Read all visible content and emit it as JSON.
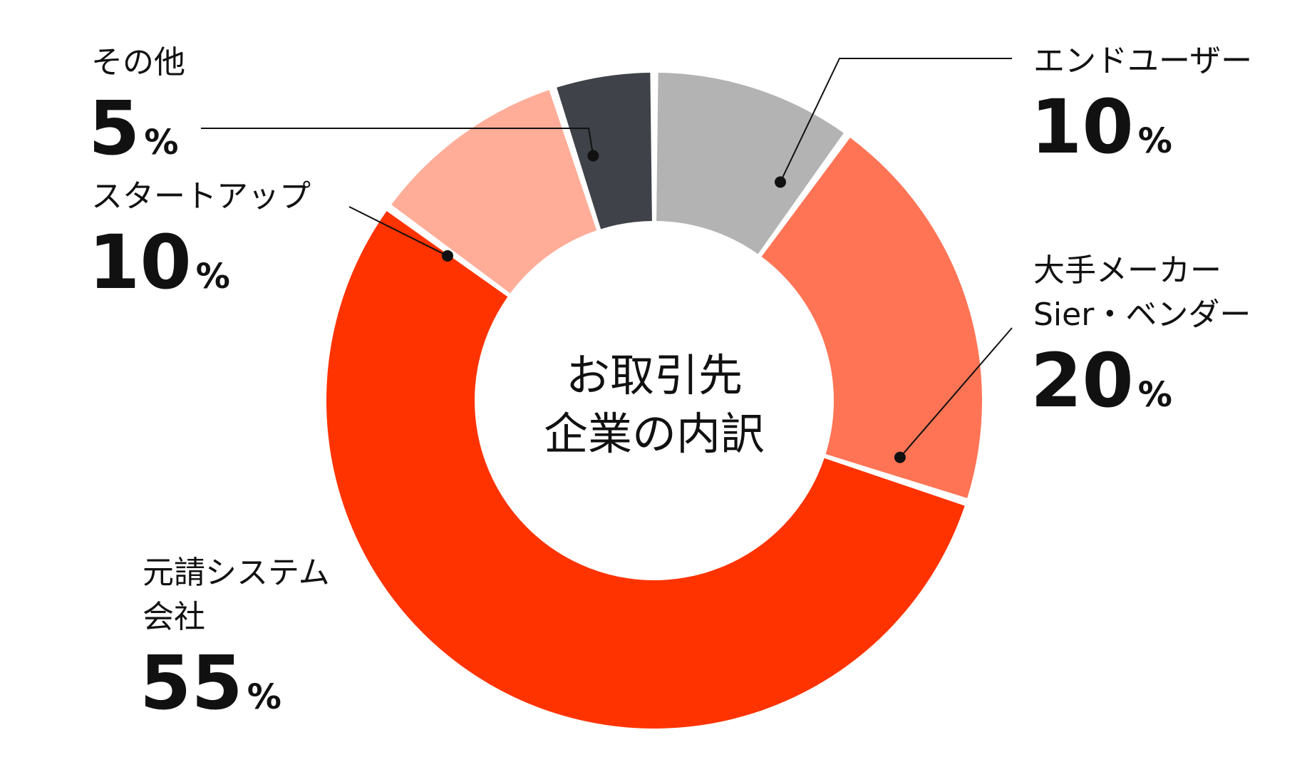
{
  "chart_data": {
    "type": "pie",
    "title": "お取引先企業の内訳",
    "title_lines": [
      "お取引先",
      "企業の内訳"
    ],
    "unit": "%",
    "slices": [
      {
        "id": "end-user",
        "label_lines": [
          "エンドユーザー"
        ],
        "value": 10,
        "color": "#b3b3b3"
      },
      {
        "id": "major-maker",
        "label_lines": [
          "大手メーカー",
          "Sier・ベンダー"
        ],
        "value": 20,
        "color": "#ff7455"
      },
      {
        "id": "prime-system",
        "label_lines": [
          "元請システム",
          "会社"
        ],
        "value": 55,
        "color": "#ff3300"
      },
      {
        "id": "startup",
        "label_lines": [
          "スタートアップ"
        ],
        "value": 10,
        "color": "#ffad99"
      },
      {
        "id": "other",
        "label_lines": [
          "その他"
        ],
        "value": 5,
        "color": "#3f4248"
      }
    ]
  }
}
